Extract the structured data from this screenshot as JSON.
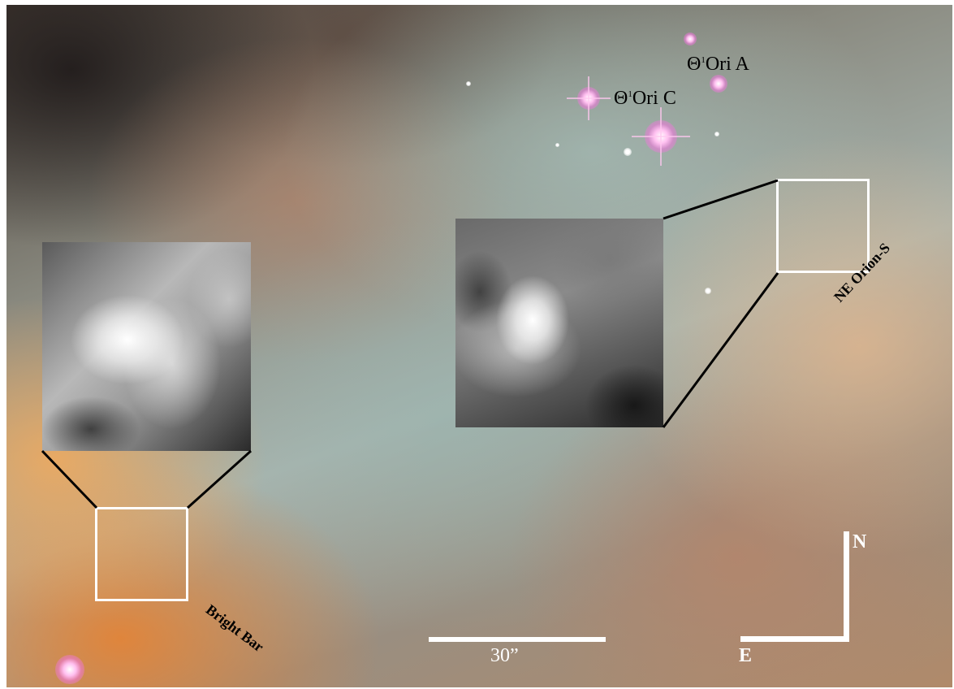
{
  "labels": {
    "ori_a_theta": "Θ",
    "ori_a_sup": "1",
    "ori_a_name": "Ori A",
    "ori_c_theta": "Θ",
    "ori_c_sup": "1",
    "ori_c_name": "Ori C",
    "orion_s": "NE Orion-S",
    "bright_bar": "Bright Bar"
  },
  "scale_bar": {
    "label": "30”"
  },
  "compass": {
    "north": "N",
    "east": "E"
  },
  "colors": {
    "frame": "#ffffff",
    "connector": "#000000",
    "star_pink": "#ff9ce6"
  }
}
